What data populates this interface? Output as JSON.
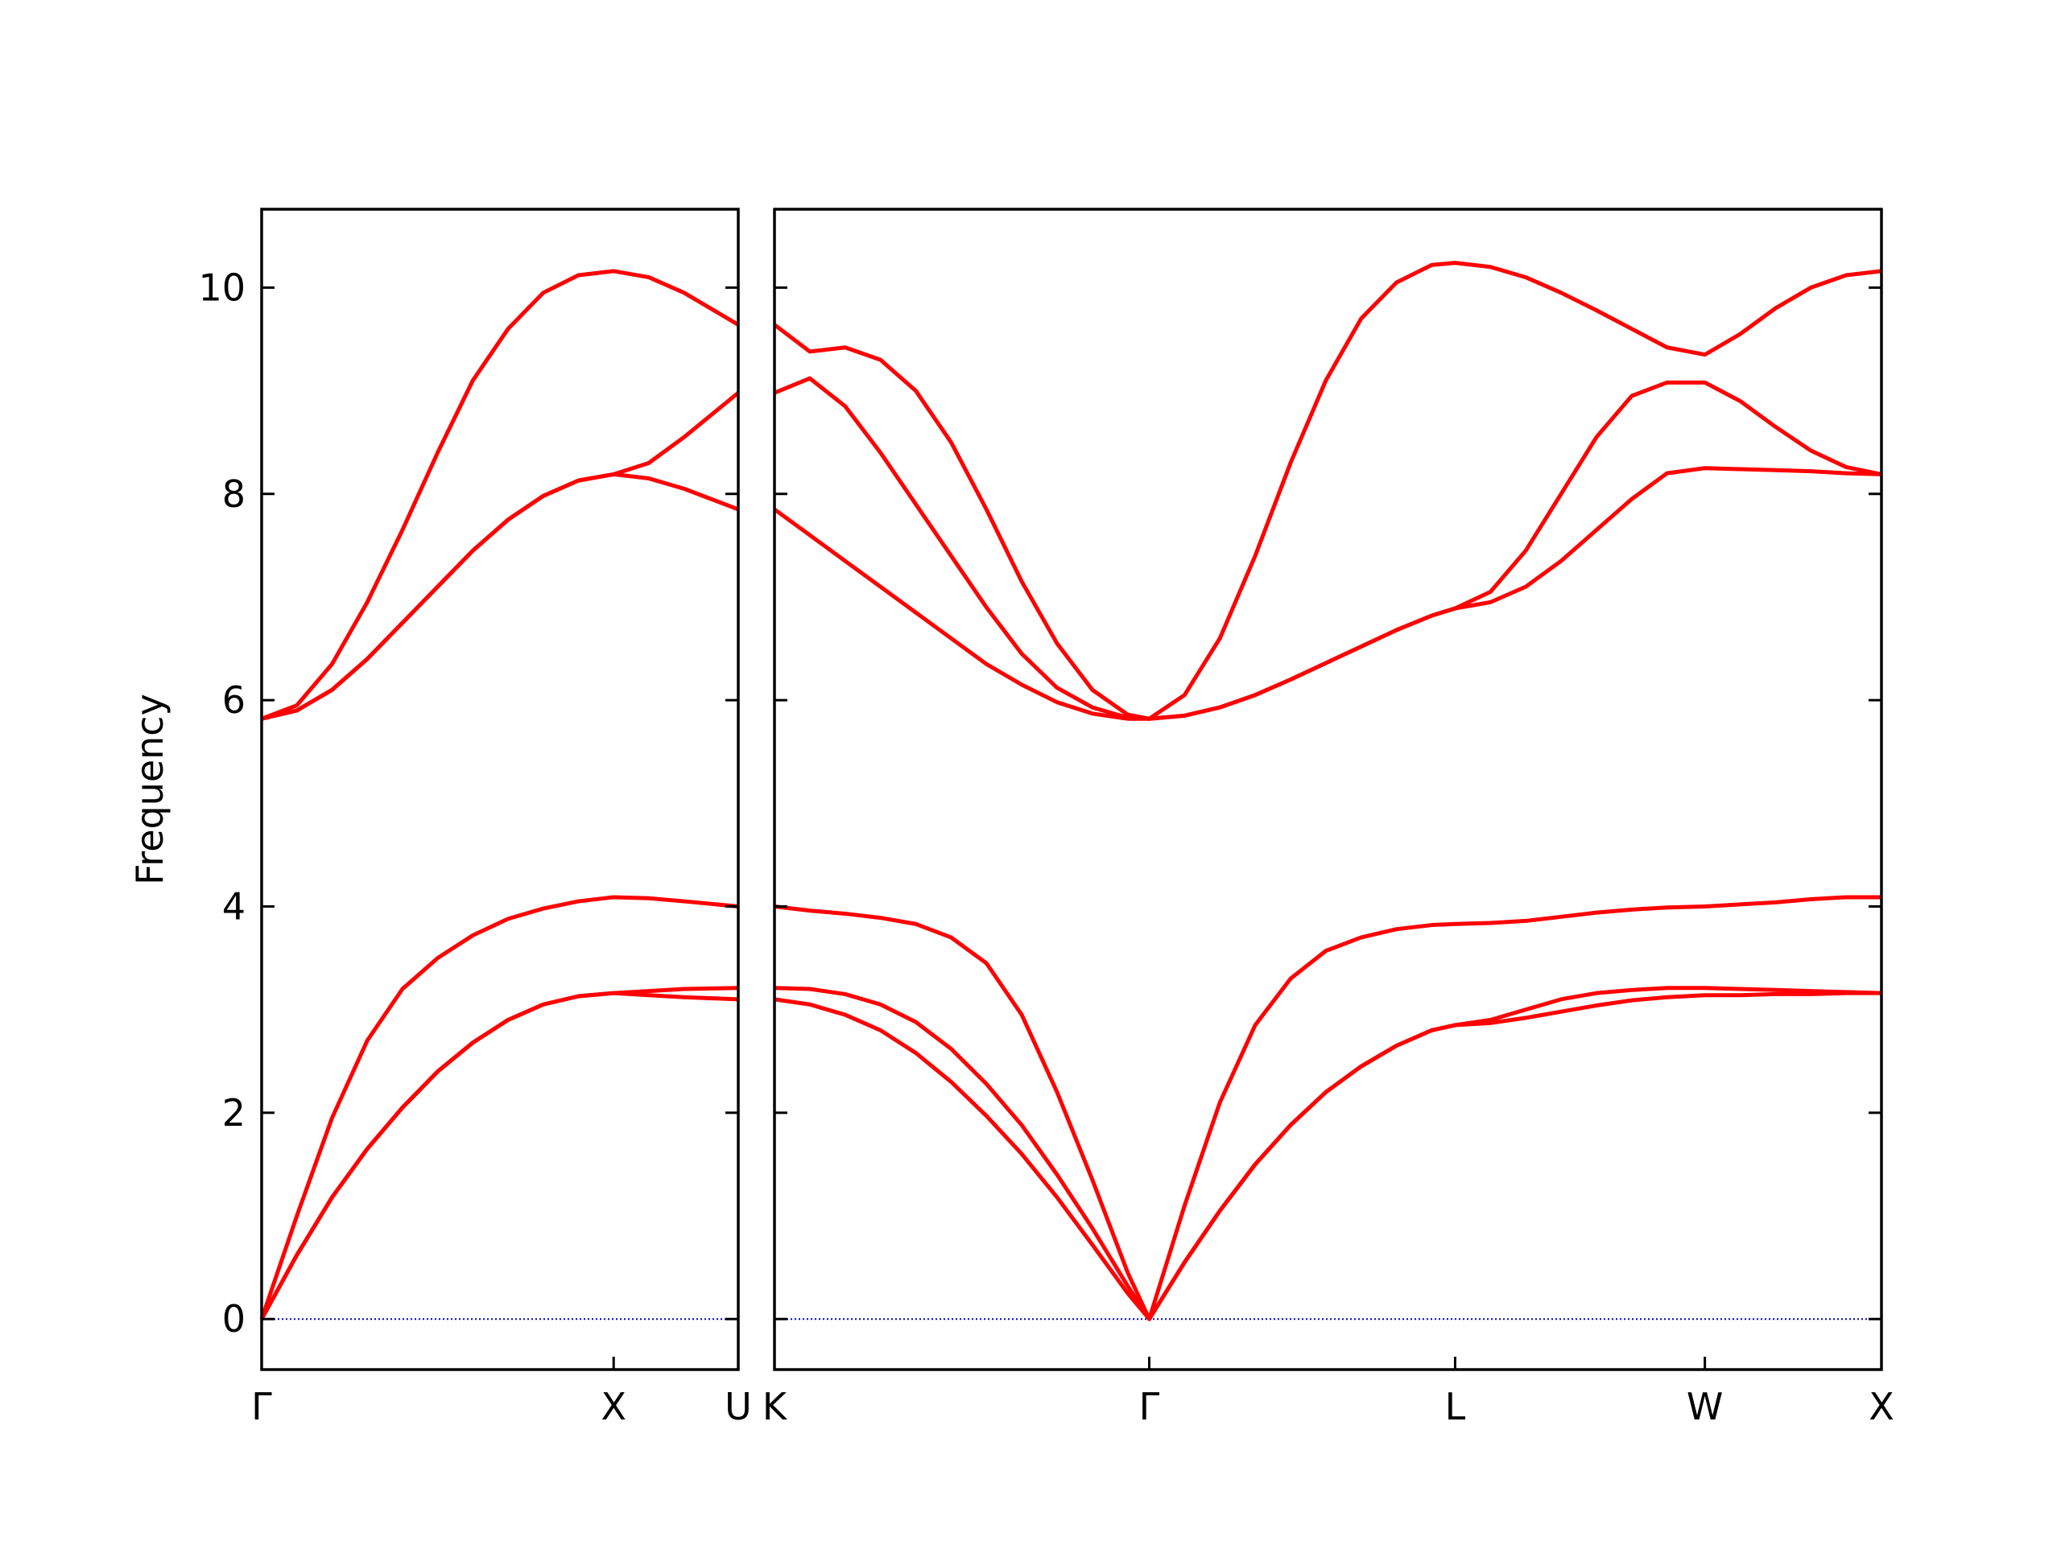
{
  "chart_data": [
    {
      "type": "line",
      "ylabel": "Frequency",
      "x": [
        0,
        0.1,
        0.2,
        0.3,
        0.4,
        0.5,
        0.6,
        0.7,
        0.8,
        0.9,
        1.0,
        1.1,
        1.2,
        1.354
      ],
      "xlim": [
        0,
        1.354
      ],
      "xticks": [
        {
          "value": 0,
          "label": "Γ"
        },
        {
          "value": 1.0,
          "label": "X"
        },
        {
          "value": 1.354,
          "label": "U"
        }
      ],
      "ylim": [
        -0.49,
        10.76
      ],
      "yticks": [
        0,
        2,
        4,
        6,
        8,
        10
      ],
      "ytick_labels": true,
      "hline": {
        "y": 0,
        "color": "#0000cc"
      },
      "series": [
        {
          "color": "#ff0000",
          "values": [
            0,
            0.62,
            1.18,
            1.65,
            2.05,
            2.4,
            2.68,
            2.9,
            3.05,
            3.13,
            3.16,
            3.14,
            3.12,
            3.1
          ]
        },
        {
          "color": "#ff0000",
          "values": [
            0,
            0.62,
            1.18,
            1.65,
            2.05,
            2.4,
            2.68,
            2.9,
            3.05,
            3.13,
            3.16,
            3.18,
            3.2,
            3.21
          ]
        },
        {
          "color": "#ff0000",
          "values": [
            0,
            1.0,
            1.95,
            2.7,
            3.2,
            3.5,
            3.72,
            3.88,
            3.98,
            4.05,
            4.09,
            4.08,
            4.05,
            4.0
          ]
        },
        {
          "color": "#ff0000",
          "values": [
            5.82,
            5.9,
            6.1,
            6.4,
            6.75,
            7.1,
            7.45,
            7.75,
            7.98,
            8.13,
            8.19,
            8.15,
            8.05,
            7.85
          ]
        },
        {
          "color": "#ff0000",
          "values": [
            5.82,
            5.9,
            6.1,
            6.4,
            6.75,
            7.1,
            7.45,
            7.75,
            7.98,
            8.13,
            8.19,
            8.3,
            8.55,
            8.98
          ]
        },
        {
          "color": "#ff0000",
          "values": [
            5.82,
            5.95,
            6.35,
            6.95,
            7.65,
            8.4,
            9.1,
            9.6,
            9.95,
            10.12,
            10.16,
            10.1,
            9.95,
            9.64
          ]
        }
      ]
    },
    {
      "type": "line",
      "x": [
        1.354,
        1.454,
        1.554,
        1.654,
        1.754,
        1.854,
        1.954,
        2.054,
        2.154,
        2.254,
        2.354,
        2.415,
        2.515,
        2.615,
        2.715,
        2.815,
        2.915,
        3.015,
        3.115,
        3.215,
        3.281,
        3.381,
        3.481,
        3.581,
        3.681,
        3.781,
        3.881,
        3.988,
        4.088,
        4.188,
        4.288,
        4.388,
        4.488
      ],
      "xlim": [
        1.354,
        4.488
      ],
      "xticks": [
        {
          "value": 1.354,
          "label": "K"
        },
        {
          "value": 2.415,
          "label": "Γ"
        },
        {
          "value": 3.281,
          "label": "L"
        },
        {
          "value": 3.988,
          "label": "W"
        },
        {
          "value": 4.488,
          "label": "X"
        }
      ],
      "ylim": [
        -0.49,
        10.76
      ],
      "yticks": [
        0,
        2,
        4,
        6,
        8,
        10
      ],
      "ytick_labels": false,
      "hline": {
        "y": 0,
        "color": "#0000cc"
      },
      "series": [
        {
          "color": "#ff0000",
          "values": [
            3.1,
            3.05,
            2.95,
            2.8,
            2.58,
            2.3,
            1.97,
            1.6,
            1.18,
            0.72,
            0.25,
            0,
            0.55,
            1.05,
            1.5,
            1.88,
            2.2,
            2.45,
            2.65,
            2.8,
            2.85,
            2.87,
            2.92,
            2.98,
            3.04,
            3.09,
            3.12,
            3.14,
            3.14,
            3.15,
            3.15,
            3.16,
            3.16
          ]
        },
        {
          "color": "#ff0000",
          "values": [
            3.21,
            3.2,
            3.15,
            3.05,
            2.88,
            2.62,
            2.28,
            1.88,
            1.4,
            0.88,
            0.32,
            0,
            0.55,
            1.05,
            1.5,
            1.88,
            2.2,
            2.45,
            2.65,
            2.8,
            2.85,
            2.9,
            3.0,
            3.1,
            3.16,
            3.19,
            3.21,
            3.21,
            3.2,
            3.19,
            3.18,
            3.17,
            3.16
          ]
        },
        {
          "color": "#ff0000",
          "values": [
            4.0,
            3.96,
            3.93,
            3.89,
            3.83,
            3.7,
            3.45,
            2.95,
            2.2,
            1.35,
            0.45,
            0,
            1.1,
            2.1,
            2.85,
            3.3,
            3.57,
            3.7,
            3.78,
            3.82,
            3.83,
            3.84,
            3.86,
            3.9,
            3.94,
            3.97,
            3.99,
            4.0,
            4.02,
            4.04,
            4.07,
            4.09,
            4.09
          ]
        },
        {
          "color": "#ff0000",
          "values": [
            7.85,
            7.6,
            7.35,
            7.1,
            6.85,
            6.6,
            6.35,
            6.15,
            5.98,
            5.87,
            5.82,
            5.82,
            5.85,
            5.93,
            6.05,
            6.2,
            6.36,
            6.52,
            6.68,
            6.82,
            6.89,
            6.95,
            7.1,
            7.35,
            7.65,
            7.95,
            8.2,
            8.25,
            8.24,
            8.23,
            8.22,
            8.2,
            8.19
          ]
        },
        {
          "color": "#ff0000",
          "values": [
            8.98,
            9.12,
            8.85,
            8.4,
            7.9,
            7.4,
            6.9,
            6.45,
            6.12,
            5.93,
            5.83,
            5.82,
            5.85,
            5.93,
            6.05,
            6.2,
            6.36,
            6.52,
            6.68,
            6.82,
            6.89,
            7.05,
            7.45,
            8.0,
            8.55,
            8.95,
            9.08,
            9.08,
            8.9,
            8.65,
            8.42,
            8.26,
            8.19
          ]
        },
        {
          "color": "#ff0000",
          "values": [
            9.64,
            9.38,
            9.42,
            9.3,
            9.0,
            8.5,
            7.85,
            7.15,
            6.55,
            6.1,
            5.86,
            5.82,
            6.05,
            6.6,
            7.4,
            8.3,
            9.1,
            9.7,
            10.05,
            10.22,
            10.24,
            10.2,
            10.1,
            9.95,
            9.78,
            9.6,
            9.42,
            9.35,
            9.55,
            9.8,
            10.0,
            10.12,
            10.16
          ]
        }
      ]
    }
  ]
}
